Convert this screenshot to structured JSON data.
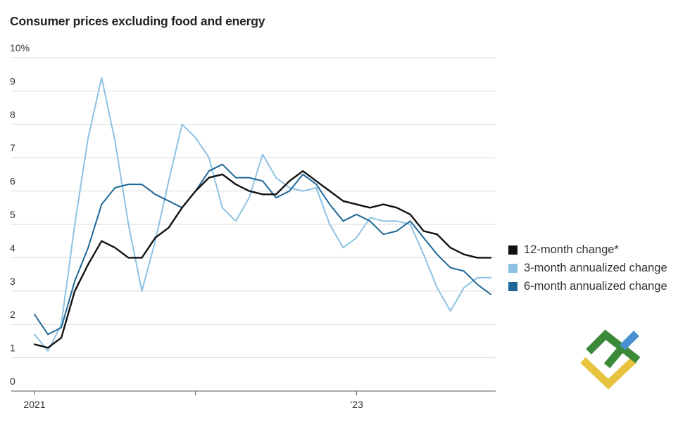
{
  "chart_data": {
    "type": "line",
    "title": "Consumer prices excluding food and energy",
    "y_unit_label": "10%",
    "ylim": [
      0,
      10
    ],
    "yticks": [
      0,
      1,
      2,
      3,
      4,
      5,
      6,
      7,
      8,
      9,
      10
    ],
    "ytick_labels": [
      "0",
      "1",
      "2",
      "3",
      "4",
      "5",
      "6",
      "7",
      "8",
      "9",
      "10%"
    ],
    "x_start_index": 0,
    "x_end_index": 34,
    "xticks": [
      {
        "index": 0,
        "label": "2021"
      },
      {
        "index": 12,
        "label": ""
      },
      {
        "index": 24,
        "label": "’23"
      }
    ],
    "legend_position": "right",
    "series": [
      {
        "name": "12-month change*",
        "color": "#111111",
        "values": [
          1.4,
          1.3,
          1.6,
          3.0,
          3.8,
          4.5,
          4.3,
          4.0,
          4.0,
          4.6,
          4.9,
          5.5,
          6.0,
          6.4,
          6.5,
          6.2,
          6.0,
          5.9,
          5.9,
          6.3,
          6.6,
          6.3,
          6.0,
          5.7,
          5.6,
          5.5,
          5.6,
          5.5,
          5.3,
          4.8,
          4.7,
          4.3,
          4.1,
          4.0,
          4.0
        ]
      },
      {
        "name": "3-month annualized change",
        "color": "#8dc2e3",
        "values": [
          1.7,
          1.2,
          2.0,
          5.0,
          7.6,
          9.4,
          7.5,
          5.0,
          3.0,
          4.5,
          6.3,
          8.0,
          7.6,
          7.0,
          5.5,
          5.1,
          5.8,
          7.1,
          6.4,
          6.1,
          6.0,
          6.1,
          5.0,
          4.3,
          4.6,
          5.2,
          5.1,
          5.1,
          5.0,
          4.1,
          3.1,
          2.4,
          3.1,
          3.4,
          3.4
        ]
      },
      {
        "name": "6-month annualized change",
        "color": "#1f6797",
        "values": [
          2.3,
          1.7,
          1.9,
          3.3,
          4.3,
          5.6,
          6.1,
          6.2,
          6.2,
          5.9,
          5.7,
          5.5,
          6.0,
          6.6,
          6.8,
          6.4,
          6.4,
          6.3,
          5.8,
          6.0,
          6.5,
          6.2,
          5.6,
          5.1,
          5.3,
          5.1,
          4.7,
          4.8,
          5.1,
          4.6,
          4.1,
          3.7,
          3.6,
          3.2,
          2.9
        ]
      }
    ]
  },
  "logo": {
    "green": "#3b8a3a",
    "yellow": "#e8c340",
    "blue": "#4a90d0"
  }
}
